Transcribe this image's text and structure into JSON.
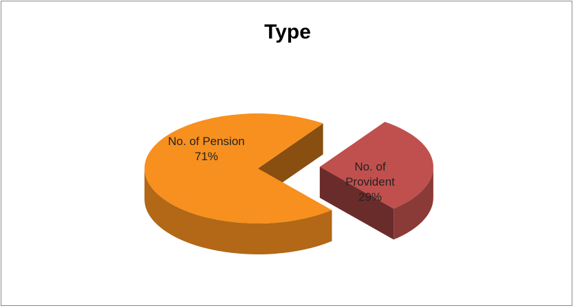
{
  "chart_data": {
    "type": "pie3d",
    "title": "Type",
    "categories": [
      "No. of Pension",
      "No. of Provident"
    ],
    "values": [
      71,
      29
    ],
    "value_labels": [
      "71%",
      "29%"
    ],
    "colors": [
      "#f7901e",
      "#c0504d"
    ]
  }
}
